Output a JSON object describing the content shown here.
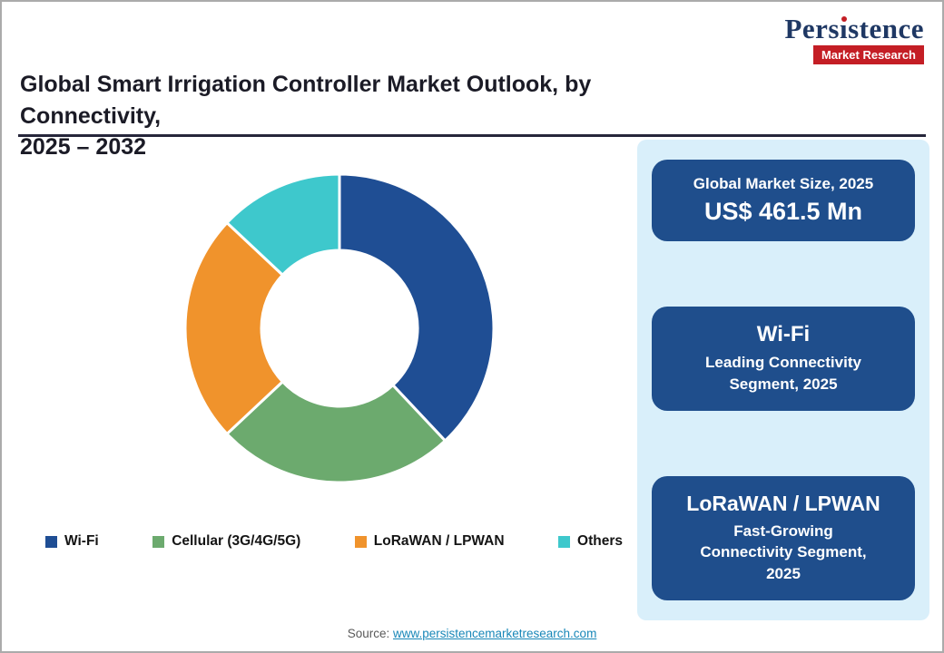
{
  "logo": {
    "name": "Persistence",
    "word_pre": "Pers",
    "word_i": "ı",
    "word_post": "stence",
    "badge": "Market Research",
    "colors": {
      "blue": "#1F3864",
      "red": "#C41E25"
    }
  },
  "header": {
    "title_line1": "Global Smart Irrigation Controller Market Outlook, by Connectivity,",
    "title_line2": "2025 – 2032"
  },
  "chart_data": {
    "type": "pie",
    "subtype": "donut",
    "title": "Global Smart Irrigation Controller Market Outlook, by Connectivity, 2025 – 2032",
    "categories": [
      "Wi-Fi",
      "Cellular (3G/4G/5G)",
      "LoRaWAN / LPWAN",
      "Others"
    ],
    "values": [
      38,
      25,
      24,
      13
    ],
    "colors": [
      "#1F4E94",
      "#6CAA6E",
      "#F0932C",
      "#3EC8CC"
    ],
    "start_angle_deg": 0,
    "direction": "clockwise",
    "inner_radius_ratio": 0.5,
    "legend_position": "bottom"
  },
  "side_panel": {
    "panel_bg": "#D9EFFA",
    "card_bg": "#1F4E8C",
    "cards": [
      {
        "title": "Global Market Size, 2025",
        "value": "US$ 461.5 Mn"
      },
      {
        "title": "Wi-Fi",
        "subtitle": "Leading Connectivity Segment, 2025"
      },
      {
        "title": "LoRaWAN / LPWAN",
        "subtitle": "Fast-Growing Connectivity Segment, 2025"
      }
    ]
  },
  "footer": {
    "source_label": "Source:",
    "source_link": "www.persistencemarketresearch.com"
  }
}
